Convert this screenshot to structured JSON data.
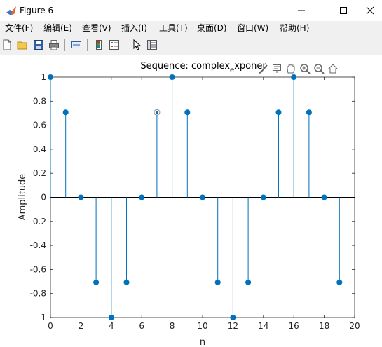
{
  "window": {
    "title": "Figure 6",
    "minimize_label": "–",
    "maximize_label": "□",
    "close_label": "✕"
  },
  "menu": [
    {
      "label": "文件(F)"
    },
    {
      "label": "编辑(E)"
    },
    {
      "label": "查看(V)"
    },
    {
      "label": "插入(I)"
    },
    {
      "label": "工具(T)"
    },
    {
      "label": "桌面(D)"
    },
    {
      "label": "窗口(W)"
    },
    {
      "label": "帮助(H)"
    }
  ],
  "toolbar": {
    "buttons": [
      "new-figure-icon",
      "open-file-icon",
      "save-icon",
      "print-icon",
      "link-plot-icon",
      "insert-colorbar-icon",
      "insert-legend-icon",
      "edit-plot-icon",
      "property-inspector-icon"
    ]
  },
  "axes_toolbar": {
    "buttons": [
      "brush-icon",
      "data-tips-icon",
      "pan-icon",
      "zoom-in-icon",
      "zoom-out-icon",
      "home-icon"
    ]
  },
  "chart_data": {
    "type": "stem",
    "title": "Sequence: complex_exponential",
    "title_shown": "Sequence: complex",
    "title_subscript": "e",
    "title_rest": "xponer",
    "xlabel": "n",
    "ylabel": "Amplitude",
    "xlim": [
      0,
      20
    ],
    "ylim": [
      -1,
      1
    ],
    "xticks": [
      "0",
      "2",
      "4",
      "6",
      "8",
      "10",
      "12",
      "14",
      "16",
      "18",
      "20"
    ],
    "yticks": [
      "1",
      "0.8",
      "0.6",
      "0.4",
      "0.2",
      "0",
      "-0.2",
      "-0.4",
      "-0.6",
      "-0.8",
      "-1"
    ],
    "x": [
      0,
      1,
      2,
      3,
      4,
      5,
      6,
      7,
      8,
      9,
      10,
      11,
      12,
      13,
      14,
      15,
      16,
      17,
      18,
      19
    ],
    "y": [
      1,
      0.7071,
      0,
      -0.7071,
      -1,
      -0.7071,
      0,
      0.7071,
      1,
      0.7071,
      0,
      -0.7071,
      -1,
      -0.7071,
      0,
      0.7071,
      1,
      0.7071,
      0,
      -0.7071
    ],
    "highlighted_index": 7,
    "color": "#0072bd"
  }
}
